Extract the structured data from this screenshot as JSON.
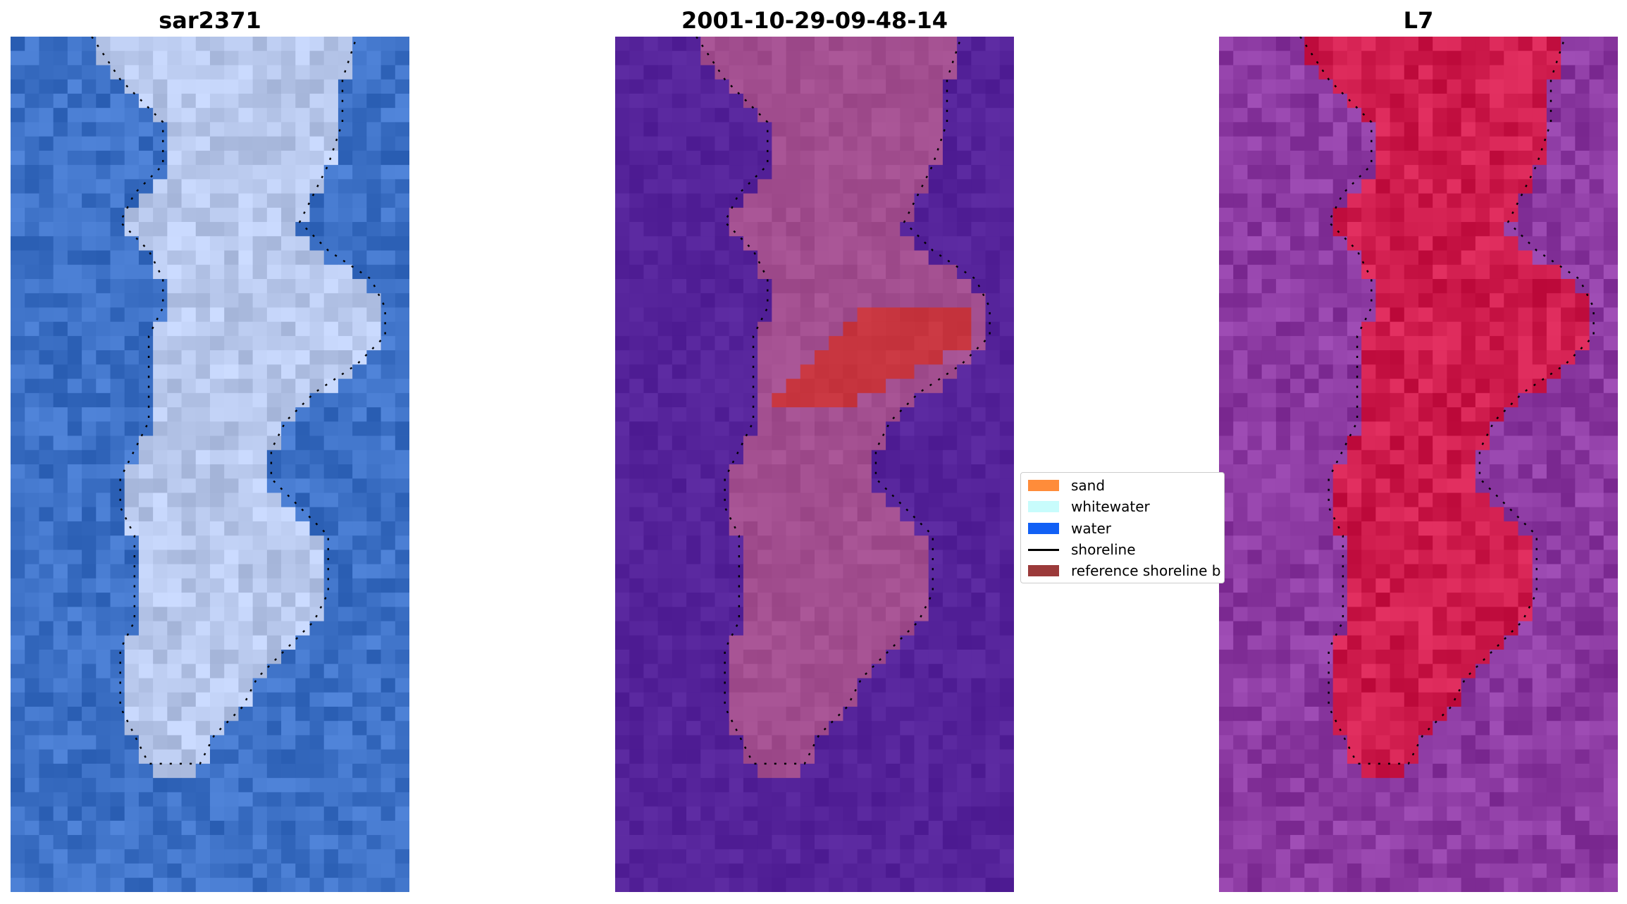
{
  "panels": {
    "left_title": "sar2371",
    "center_title": "2001-10-29-09-48-14",
    "right_title": "L7"
  },
  "legend": {
    "items": [
      {
        "label": "sand",
        "color": "#ff8c3a",
        "kind": "patch"
      },
      {
        "label": "whitewater",
        "color": "#c8fcfc",
        "kind": "patch"
      },
      {
        "label": "water",
        "color": "#1160f5",
        "kind": "patch"
      },
      {
        "label": "shoreline",
        "color": "#000000",
        "kind": "line"
      },
      {
        "label": "reference shoreline b",
        "color": "#9b3a3a",
        "kind": "patch"
      }
    ]
  },
  "colors": {
    "rgb_water": "#3d71c6",
    "rgb_land": "#b8c8ec",
    "classified_water": "#55239a",
    "classified_land": "#a24e8f",
    "classified_highlight": "#c7353f",
    "ndwi_water": "#8c3aa2",
    "ndwi_land": "#cf1c4d"
  }
}
